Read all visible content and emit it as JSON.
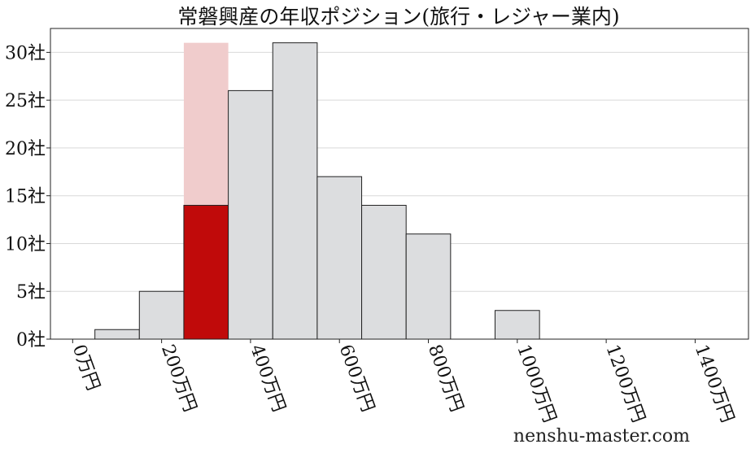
{
  "chart_data": {
    "type": "bar",
    "title": "常磐興産の年収ポジション(旅行・レジャー業内)",
    "xlabel": "",
    "ylabel": "",
    "x_unit_suffix": "万円",
    "y_unit_suffix": "社",
    "xlim": [
      -50,
      1520
    ],
    "ylim": [
      0,
      32.5
    ],
    "x_ticks": [
      0,
      200,
      400,
      600,
      800,
      1000,
      1200,
      1400
    ],
    "y_ticks": [
      0,
      5,
      10,
      15,
      20,
      25,
      30
    ],
    "grid": "horizontal",
    "bin_width": 100,
    "bins": [
      {
        "x": 100,
        "count": 1
      },
      {
        "x": 200,
        "count": 5
      },
      {
        "x": 300,
        "count": 14,
        "highlight": true
      },
      {
        "x": 400,
        "count": 26
      },
      {
        "x": 500,
        "count": 31
      },
      {
        "x": 600,
        "count": 17
      },
      {
        "x": 700,
        "count": 14
      },
      {
        "x": 800,
        "count": 11
      },
      {
        "x": 1000,
        "count": 3
      }
    ],
    "highlight_background_height": 31,
    "colors": {
      "bar": "#dcdddf",
      "highlight": "#c00a0a",
      "highlight_background": "#f0cccc",
      "edge": "#222222",
      "grid": "#d9d9d9"
    }
  },
  "watermark": "nenshu-master.com"
}
